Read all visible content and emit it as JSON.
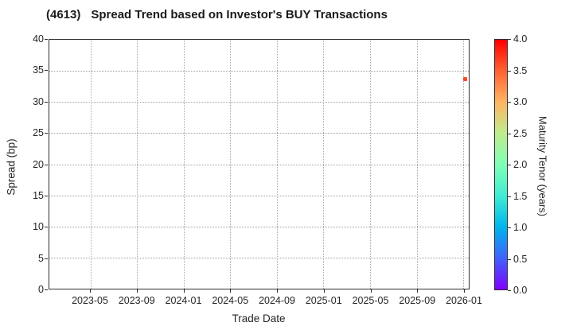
{
  "figure": {
    "title_code": "(4613)",
    "title_text": "Spread Trend based on Investor's BUY Transactions"
  },
  "chart_data": {
    "type": "scatter",
    "title": "(4613)  Spread Trend based on Investor's BUY Transactions",
    "xlabel": "Trade Date",
    "ylabel": "Spread (bp)",
    "x_ticks": [
      "2023-05",
      "2023-09",
      "2024-01",
      "2024-05",
      "2024-09",
      "2025-01",
      "2025-05",
      "2025-09",
      "2026-01"
    ],
    "y_ticks": [
      0,
      5,
      10,
      15,
      20,
      25,
      30,
      35,
      40
    ],
    "ylim": [
      0,
      40
    ],
    "grid": true,
    "grid_style": "dotted",
    "legend_position": "none",
    "marker": "square",
    "points": [
      {
        "trade_date": "2026-01",
        "spread_bp": 33.6,
        "maturity_tenor_years": 3.6,
        "color": "#fb4a28"
      }
    ],
    "colorbar": {
      "label": "Maturity Tenor (years)",
      "ticks": [
        "0.0",
        "0.5",
        "1.0",
        "1.5",
        "2.0",
        "2.5",
        "3.0",
        "3.5",
        "4.0"
      ],
      "range": [
        0,
        4
      ],
      "colormap": "rainbow",
      "gradient_stops": [
        {
          "value": 0.0,
          "color": "#8000ff"
        },
        {
          "value": 0.5,
          "color": "#4062fa"
        },
        {
          "value": 1.0,
          "color": "#00b5ec"
        },
        {
          "value": 1.5,
          "color": "#40ecd4"
        },
        {
          "value": 2.0,
          "color": "#80ffb5"
        },
        {
          "value": 2.5,
          "color": "#bfec8e"
        },
        {
          "value": 3.0,
          "color": "#ffb562"
        },
        {
          "value": 3.5,
          "color": "#ff6232"
        },
        {
          "value": 4.0,
          "color": "#ff0000"
        }
      ]
    }
  }
}
